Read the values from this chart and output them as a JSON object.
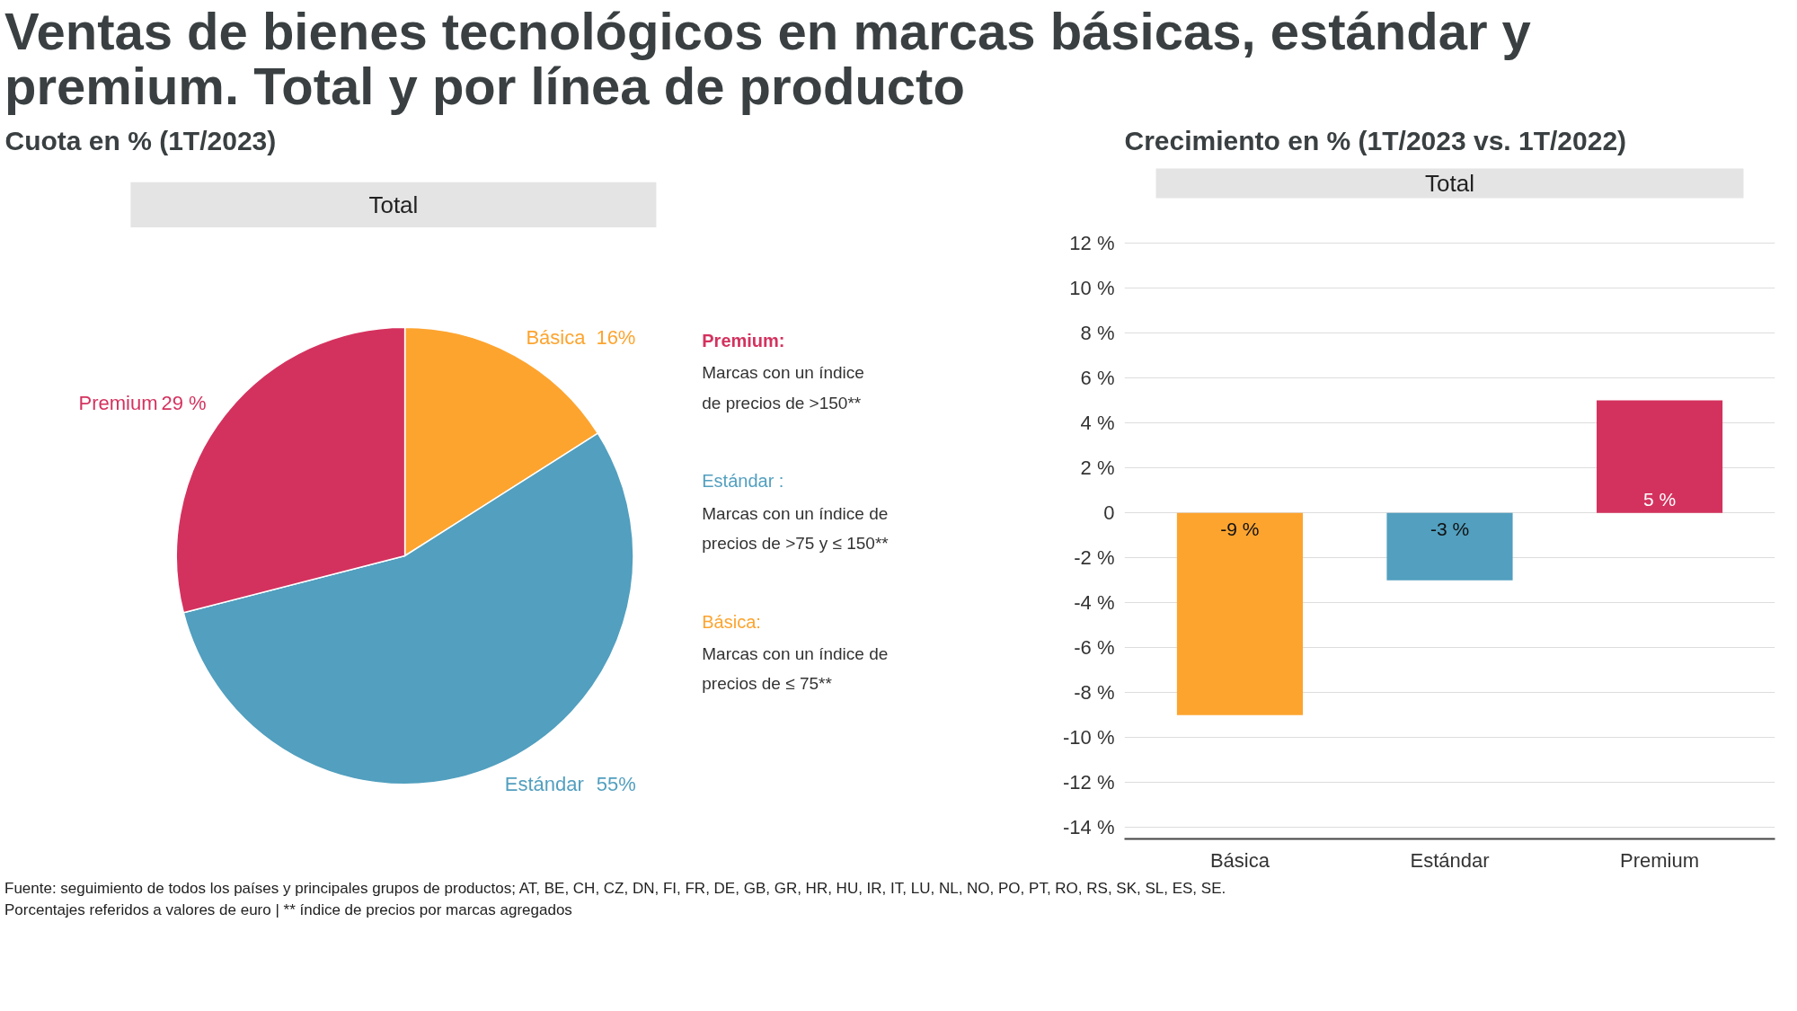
{
  "chart_data": [
    {
      "type": "pie",
      "title": "Ventas de bienes tecnológicos en marcas básicas, estándar y premium. Total y por línea de producto",
      "subtitle": "Cuota en % (1T/2023)",
      "categories": [
        "Básica",
        "Estándar",
        "Premium"
      ],
      "values": [
        16,
        55,
        29
      ],
      "colors": [
        "#fda42f",
        "#529fbf",
        "#d4325e"
      ],
      "value_labels": [
        "16%",
        "55%",
        "29 %"
      ],
      "annotations": [
        "Total",
        "Premium:",
        "Marcas con un índice\nde precios de >150**",
        "Estándar :",
        "Marcas con un índice de\nprecios de >75 y ≤ 150**",
        "Básica:",
        "Marcas con un índice de\nprecios de ≤ 75**"
      ]
    },
    {
      "type": "bar",
      "title": "Crecimiento en % (1T/2023 vs. 1T/2022)",
      "categories": [
        "Básica",
        "Estándar",
        "Premium"
      ],
      "values": [
        -9,
        -3,
        5
      ],
      "colors": [
        "#fda42f",
        "#529fbf",
        "#d4325e"
      ],
      "value_labels": [
        "-9 %",
        "-3 %",
        "5 %"
      ],
      "ylim": [
        -14.5,
        12
      ],
      "yticks": [
        {
          "value": -14,
          "label": "-14 %"
        },
        {
          "value": -12,
          "label": "-12 %"
        },
        {
          "value": -10,
          "label": "-10 %"
        },
        {
          "value": -8,
          "label": "-8 %"
        },
        {
          "value": -6,
          "label": "-6 %"
        },
        {
          "value": -4,
          "label": "-4 %"
        },
        {
          "value": -2,
          "label": "-2 %"
        },
        0,
        {
          "value": 2,
          "label": "2 %"
        },
        {
          "value": 4,
          "label": "4 %"
        },
        {
          "value": 6,
          "label": "6 %"
        },
        {
          "value": 8,
          "label": "8 %"
        },
        {
          "value": 10,
          "label": "10 %"
        },
        {
          "value": 12,
          "label": "12 %"
        }
      ],
      "grid": "y",
      "annotations": [
        "Total",
        "Fuente: seguimiento de todos los países y principales grupos de productos; AT, BE, CH, CZ, DN, FI, FR, DE, GB, GR, HR, HU, IR, IT, LU, NL, NO, PO, PT, RO, RS, SK, SL, ES, SE.\nPorcentajes referidos a valores de euro | ** índice de precios por marcas agregados"
      ]
    }
  ]
}
